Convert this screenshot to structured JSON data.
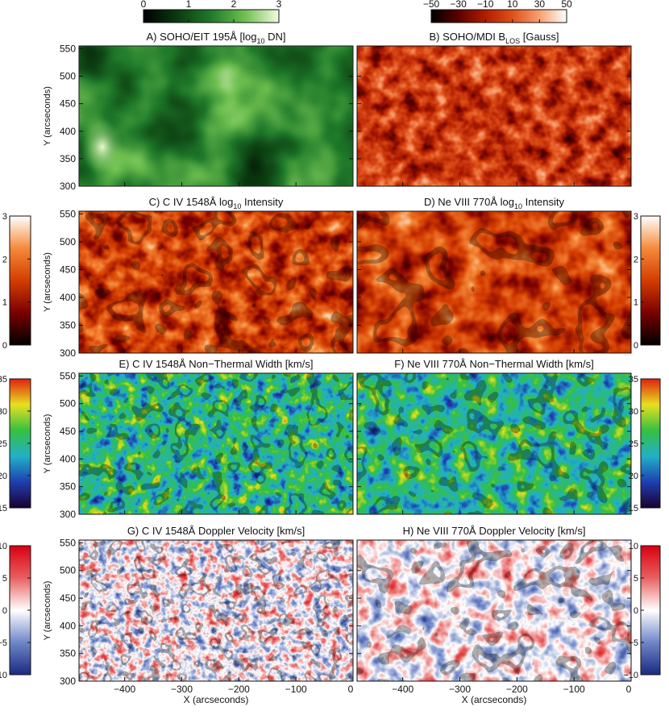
{
  "chart_data": [
    {
      "type": "heatmap",
      "title": "A) SOHO/EIT 195Å [log",
      "title_sub": "10",
      "title_end": " DN]",
      "ylabel": "Y (arcseconds)",
      "xlabel": "",
      "xlim": [
        -480,
        0
      ],
      "ylim": [
        300,
        555
      ],
      "y_ticks": [
        "550",
        "500",
        "450",
        "400",
        "350",
        "300"
      ],
      "colorbar": {
        "position": "top",
        "ticks": [
          "0",
          "1",
          "2",
          "3"
        ],
        "colors": [
          "#000000",
          "#0b3a10",
          "#1f7a2a",
          "#6fc050",
          "#f2fbe0"
        ]
      }
    },
    {
      "type": "heatmap",
      "title": "B) SOHO/MDI B",
      "title_sub": "LOS",
      "title_end": " [Gauss]",
      "ylabel": "",
      "xlabel": "",
      "xlim": [
        -480,
        0
      ],
      "ylim": [
        300,
        555
      ],
      "colorbar": {
        "position": "top",
        "ticks": [
          "−50",
          "−30",
          "−10",
          "10",
          "30",
          "50"
        ],
        "colors": [
          "#000000",
          "#5a0000",
          "#b01d00",
          "#e0501a",
          "#f7a070",
          "#ffffff"
        ]
      }
    },
    {
      "type": "heatmap",
      "title": "C) C IV 1548Å log",
      "title_sub": "10",
      "title_end": " Intensity",
      "ylabel": "Y (arcseconds)",
      "xlabel": "",
      "xlim": [
        -480,
        0
      ],
      "ylim": [
        300,
        555
      ],
      "y_ticks": [
        "550",
        "500",
        "450",
        "400",
        "350",
        "300"
      ],
      "colorbar": {
        "position": "left",
        "ticks": [
          "0",
          "1",
          "2",
          "3"
        ],
        "colors": [
          "#000000",
          "#7a0000",
          "#d43d00",
          "#f58a3a",
          "#ffffff"
        ]
      }
    },
    {
      "type": "heatmap",
      "title": "D) Ne VIII 770Å log",
      "title_sub": "10",
      "title_end": " Intensity",
      "ylabel": "",
      "xlabel": "",
      "xlim": [
        -480,
        0
      ],
      "ylim": [
        300,
        555
      ],
      "colorbar": {
        "position": "right",
        "ticks": [
          "0",
          "1",
          "2",
          "3"
        ],
        "colors": [
          "#000000",
          "#7a0000",
          "#d43d00",
          "#f58a3a",
          "#ffffff"
        ]
      }
    },
    {
      "type": "heatmap",
      "title": "E) C IV 1548Å Non−Thermal Width [km/s]",
      "ylabel": "Y (arcseconds)",
      "xlabel": "",
      "xlim": [
        -480,
        0
      ],
      "ylim": [
        300,
        555
      ],
      "y_ticks": [
        "550",
        "500",
        "450",
        "400",
        "350",
        "300"
      ],
      "colorbar": {
        "position": "left",
        "ticks": [
          "15",
          "20",
          "25",
          "30",
          "35"
        ],
        "colors": [
          "#1a0030",
          "#1f3fb0",
          "#22b0c8",
          "#35c040",
          "#e8e020",
          "#e02010"
        ]
      }
    },
    {
      "type": "heatmap",
      "title": "F) Ne VIII 770Å Non−Thermal Width [km/s]",
      "ylabel": "",
      "xlabel": "",
      "xlim": [
        -480,
        0
      ],
      "ylim": [
        300,
        555
      ],
      "colorbar": {
        "position": "right",
        "ticks": [
          "15",
          "20",
          "25",
          "30",
          "35"
        ],
        "colors": [
          "#1a0030",
          "#1f3fb0",
          "#22b0c8",
          "#35c040",
          "#e8e020",
          "#e02010"
        ]
      }
    },
    {
      "type": "heatmap",
      "title": "G) C IV 1548Å Doppler Velocity [km/s]",
      "ylabel": "Y (arcseconds)",
      "xlabel": "X (arcseconds)",
      "xlim": [
        -480,
        0
      ],
      "ylim": [
        300,
        555
      ],
      "y_ticks": [
        "550",
        "500",
        "450",
        "400",
        "350",
        "300"
      ],
      "x_ticks": [
        "−400",
        "−300",
        "−200",
        "−100",
        "0"
      ],
      "colorbar": {
        "position": "left",
        "ticks": [
          "−10",
          "−5",
          "0",
          "5",
          "10"
        ],
        "colors": [
          "#1a2a80",
          "#6f86c8",
          "#ffffff",
          "#e86060",
          "#d80010"
        ]
      }
    },
    {
      "type": "heatmap",
      "title": "H) Ne VIII 770Å Doppler Velocity [km/s]",
      "ylabel": "",
      "xlabel": "X (arcseconds)",
      "xlim": [
        -480,
        0
      ],
      "ylim": [
        300,
        555
      ],
      "x_ticks": [
        "−400",
        "−300",
        "−200",
        "−100",
        "0"
      ],
      "colorbar": {
        "position": "right",
        "ticks": [
          "−10",
          "−5",
          "0",
          "5",
          "10"
        ],
        "colors": [
          "#1a2a80",
          "#6f86c8",
          "#ffffff",
          "#e86060",
          "#d80010"
        ]
      }
    }
  ]
}
